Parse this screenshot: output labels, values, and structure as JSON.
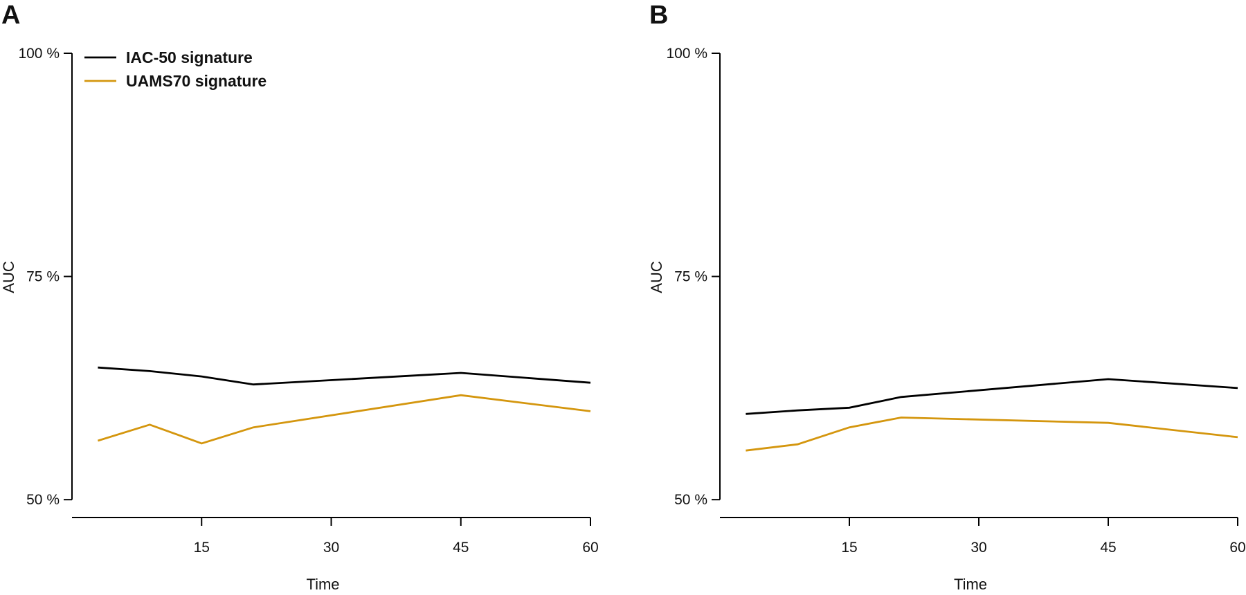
{
  "chart_data": [
    {
      "panel": "A",
      "type": "line",
      "xlabel": "Time",
      "ylabel": "AUC",
      "xlim": [
        0,
        60
      ],
      "ylim": [
        48,
        100
      ],
      "x_ticks": [
        15,
        30,
        45,
        60
      ],
      "y_ticks": [
        50,
        75,
        100
      ],
      "y_tick_labels": [
        "50 %",
        "75 %",
        "100 %"
      ],
      "legend_position": "top-left",
      "series": [
        {
          "name": "IAC-50 signature",
          "color": "#000000",
          "x": [
            3,
            9,
            15,
            21,
            45,
            60
          ],
          "y": [
            64.8,
            64.4,
            63.8,
            62.9,
            64.2,
            63.1
          ]
        },
        {
          "name": "UAMS70 signature",
          "color": "#D4960E",
          "x": [
            3,
            9,
            15,
            21,
            45,
            60
          ],
          "y": [
            56.6,
            58.4,
            56.3,
            58.1,
            61.7,
            59.9
          ]
        }
      ]
    },
    {
      "panel": "B",
      "type": "line",
      "xlabel": "Time",
      "ylabel": "AUC",
      "xlim": [
        0,
        60
      ],
      "ylim": [
        48,
        100
      ],
      "x_ticks": [
        15,
        30,
        45,
        60
      ],
      "y_ticks": [
        50,
        75,
        100
      ],
      "y_tick_labels": [
        "50 %",
        "75 %",
        "100 %"
      ],
      "series": [
        {
          "color": "#000000",
          "x": [
            3,
            9,
            15,
            21,
            45,
            60
          ],
          "y": [
            59.6,
            60.0,
            60.3,
            61.5,
            63.5,
            62.5
          ]
        },
        {
          "color": "#D4960E",
          "x": [
            3,
            9,
            15,
            21,
            45,
            60
          ],
          "y": [
            55.5,
            56.2,
            58.1,
            59.2,
            58.6,
            57.0
          ]
        }
      ]
    }
  ]
}
